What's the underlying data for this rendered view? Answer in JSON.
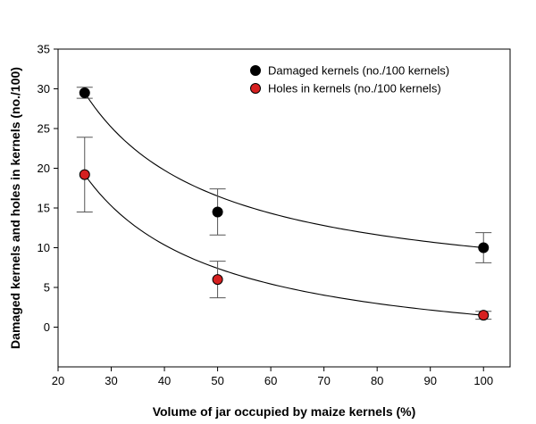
{
  "chart_data": {
    "type": "scatter",
    "title": "",
    "xlabel": "Volume of jar occupied by maize kernels (%)",
    "ylabel": "Damaged kernels and holes in kernels (no./100)",
    "xlim": [
      20,
      105
    ],
    "ylim": [
      -5,
      35
    ],
    "xticks": [
      20,
      30,
      40,
      50,
      60,
      70,
      80,
      90,
      100
    ],
    "yticks": [
      0,
      5,
      10,
      15,
      20,
      25,
      30,
      35
    ],
    "grid": false,
    "legend_position": "top-right",
    "series": [
      {
        "name": "Damaged kernels (no./100 kernels)",
        "color": "#000000",
        "x": [
          25,
          50,
          100
        ],
        "y": [
          29.5,
          14.5,
          10.0
        ],
        "error": [
          0.7,
          2.9,
          1.9
        ],
        "fit": "curve"
      },
      {
        "name": "Holes in kernels (no./100 kernels)",
        "color": "#d62020",
        "x": [
          25,
          50,
          100
        ],
        "y": [
          19.2,
          6.0,
          1.5
        ],
        "error": [
          4.7,
          2.3,
          0.5
        ],
        "fit": "curve"
      }
    ]
  }
}
